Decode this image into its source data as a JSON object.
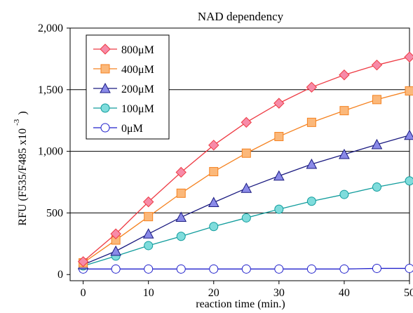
{
  "chart_data": {
    "type": "line",
    "title": "NAD dependency",
    "xlabel": "reaction time (min.)",
    "ylabel_main": "RFU (F535/F485 x10",
    "ylabel_sup": "-3",
    "ylabel_close": ")",
    "xlim": [
      -2,
      50
    ],
    "ylim": [
      -50,
      2000
    ],
    "x_ticks": [
      0,
      10,
      20,
      30,
      40,
      50
    ],
    "y_ticks": [
      0,
      500,
      1000,
      1500,
      2000
    ],
    "y_tick_labels": [
      "0",
      "500",
      "1,000",
      "1,500",
      "2,000"
    ],
    "gridlines": "horizontal major lines at 500, 1000, 1500, 2000",
    "legend_position": "top-left",
    "x": [
      0,
      5,
      10,
      15,
      20,
      25,
      30,
      35,
      40,
      45,
      50
    ],
    "series": [
      {
        "name": "800μM",
        "color": "#ee3b44",
        "fill": "#f78ba8",
        "marker": "diamond",
        "values": [
          105,
          330,
          590,
          830,
          1050,
          1235,
          1390,
          1520,
          1620,
          1700,
          1765
        ]
      },
      {
        "name": "400μM",
        "color": "#f58220",
        "fill": "#fbb87a",
        "marker": "square",
        "values": [
          95,
          280,
          470,
          660,
          835,
          985,
          1120,
          1235,
          1330,
          1420,
          1490
        ]
      },
      {
        "name": "200μM",
        "color": "#1a1a80",
        "fill": "#8a8ae8",
        "marker": "triangle",
        "values": [
          80,
          190,
          330,
          465,
          585,
          700,
          800,
          895,
          975,
          1055,
          1130
        ]
      },
      {
        "name": "100μM",
        "color": "#109c9c",
        "fill": "#7fdcdc",
        "marker": "circle",
        "values": [
          70,
          150,
          235,
          310,
          390,
          460,
          530,
          595,
          650,
          710,
          760
        ]
      },
      {
        "name": "0μM",
        "color": "#2222cc",
        "fill": "#ffffff",
        "marker": "circle",
        "values": [
          45,
          45,
          45,
          45,
          45,
          45,
          45,
          45,
          45,
          50,
          50
        ]
      }
    ]
  }
}
